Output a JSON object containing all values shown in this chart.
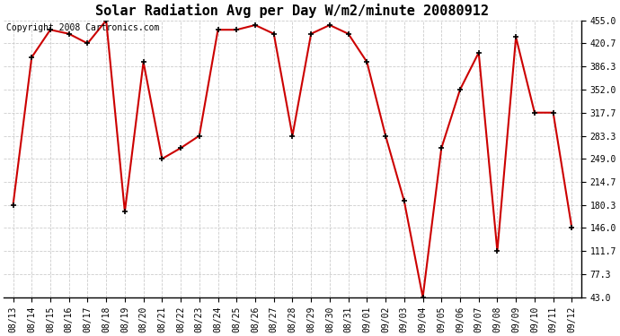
{
  "title": "Solar Radiation Avg per Day W/m2/minute 20080912",
  "copyright_text": "Copyright 2008 Cartronics.com",
  "x_labels": [
    "08/13",
    "08/14",
    "08/15",
    "08/16",
    "08/17",
    "08/18",
    "08/19",
    "08/20",
    "08/21",
    "08/22",
    "08/23",
    "08/24",
    "08/25",
    "08/26",
    "08/27",
    "08/28",
    "08/29",
    "08/30",
    "08/31",
    "09/01",
    "09/02",
    "09/03",
    "09/04",
    "09/05",
    "09/06",
    "09/07",
    "09/08",
    "09/09",
    "09/10",
    "09/11",
    "09/12"
  ],
  "y_values": [
    180.3,
    400.0,
    441.0,
    435.0,
    420.7,
    455.0,
    170.3,
    393.0,
    249.0,
    265.0,
    283.3,
    441.0,
    441.0,
    448.0,
    435.0,
    283.3,
    435.0,
    448.0,
    435.0,
    393.0,
    283.3,
    186.0,
    43.0,
    265.0,
    352.0,
    407.0,
    111.7,
    430.0,
    317.7,
    317.7,
    146.0
  ],
  "line_color": "#cc0000",
  "marker_color": "#000000",
  "bg_color": "#ffffff",
  "grid_color": "#c0c0c0",
  "yticks": [
    43.0,
    77.3,
    111.7,
    146.0,
    180.3,
    214.7,
    249.0,
    283.3,
    317.7,
    352.0,
    386.3,
    420.7,
    455.0
  ],
  "title_fontsize": 11,
  "copyright_fontsize": 7,
  "tick_fontsize": 7
}
